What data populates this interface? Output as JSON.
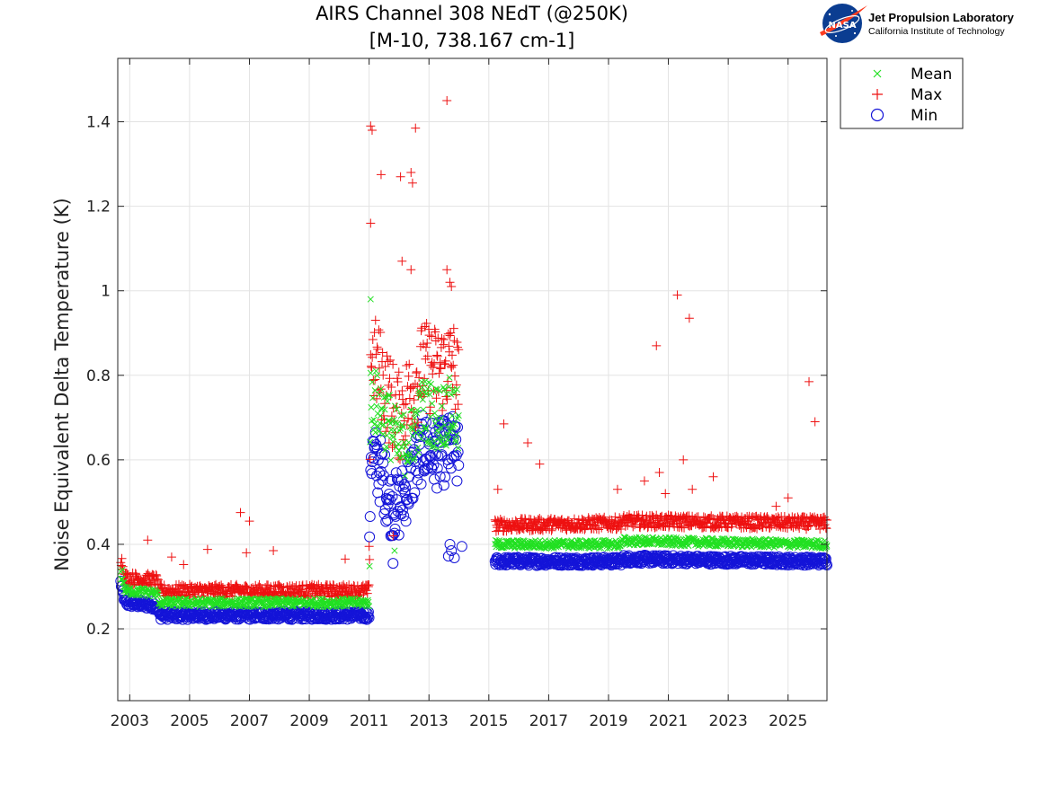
{
  "chart_data": {
    "type": "scatter",
    "title": "AIRS Channel 308 NEdT (@250K)",
    "subtitle": "[M-10, 738.167 cm-1]",
    "xlabel": "",
    "ylabel": "Noise Equivalent Delta Temperature (K)",
    "xlim": [
      2002.6,
      2026.3
    ],
    "ylim": [
      0.03,
      1.55
    ],
    "x_ticks": [
      "2003",
      "2005",
      "2007",
      "2009",
      "2011",
      "2013",
      "2015",
      "2017",
      "2019",
      "2021",
      "2023",
      "2025"
    ],
    "x_tick_values": [
      2003,
      2005,
      2007,
      2009,
      2011,
      2013,
      2015,
      2017,
      2019,
      2021,
      2023,
      2025
    ],
    "y_ticks": [
      "0.2",
      "0.4",
      "0.6",
      "0.8",
      "1",
      "1.2",
      "1.4"
    ],
    "y_tick_values": [
      0.2,
      0.4,
      0.6,
      0.8,
      1.0,
      1.2,
      1.4
    ],
    "grid": true,
    "legend_position": "outside-top-right",
    "series": [
      {
        "name": "Mean",
        "marker": "x",
        "color": "#22e022",
        "trend": [
          [
            2002.7,
            0.33
          ],
          [
            2002.85,
            0.29
          ],
          [
            2003.9,
            0.285
          ],
          [
            2004.0,
            0.262
          ],
          [
            2011.0,
            0.262
          ],
          [
            2011.05,
            0.75
          ],
          [
            2011.4,
            0.72
          ],
          [
            2011.7,
            0.68
          ],
          [
            2012.0,
            0.63
          ],
          [
            2012.4,
            0.65
          ],
          [
            2012.8,
            0.72
          ],
          [
            2013.3,
            0.7
          ],
          [
            2013.8,
            0.72
          ],
          [
            2015.2,
            0.4
          ],
          [
            2019.4,
            0.4
          ],
          [
            2019.5,
            0.408
          ],
          [
            2026.3,
            0.4
          ]
        ],
        "outliers": [
          [
            2011.05,
            0.98
          ],
          [
            2011.85,
            0.385
          ],
          [
            2002.75,
            0.34
          ]
        ]
      },
      {
        "name": "Max",
        "marker": "+",
        "color": "#ee1111",
        "trend": [
          [
            2002.7,
            0.37
          ],
          [
            2002.85,
            0.32
          ],
          [
            2003.9,
            0.315
          ],
          [
            2004.0,
            0.29
          ],
          [
            2011.0,
            0.29
          ],
          [
            2011.05,
            0.85
          ],
          [
            2011.4,
            0.8
          ],
          [
            2011.7,
            0.74
          ],
          [
            2012.0,
            0.7
          ],
          [
            2012.4,
            0.76
          ],
          [
            2012.8,
            0.82
          ],
          [
            2013.3,
            0.81
          ],
          [
            2013.8,
            0.83
          ],
          [
            2015.2,
            0.445
          ],
          [
            2019.4,
            0.45
          ],
          [
            2019.5,
            0.455
          ],
          [
            2026.3,
            0.45
          ]
        ],
        "outliers": [
          [
            2003.6,
            0.41
          ],
          [
            2004.4,
            0.37
          ],
          [
            2004.8,
            0.352
          ],
          [
            2005.6,
            0.388
          ],
          [
            2006.7,
            0.475
          ],
          [
            2006.9,
            0.38
          ],
          [
            2007.0,
            0.455
          ],
          [
            2007.8,
            0.385
          ],
          [
            2010.2,
            0.365
          ],
          [
            2011.0,
            0.395
          ],
          [
            2011.05,
            1.39
          ],
          [
            2011.1,
            1.38
          ],
          [
            2011.05,
            1.16
          ],
          [
            2011.4,
            1.275
          ],
          [
            2011.8,
            0.42
          ],
          [
            2012.05,
            1.27
          ],
          [
            2012.1,
            1.07
          ],
          [
            2012.4,
            1.28
          ],
          [
            2012.45,
            1.255
          ],
          [
            2012.55,
            1.385
          ],
          [
            2012.4,
            1.05
          ],
          [
            2013.6,
            1.45
          ],
          [
            2013.6,
            1.05
          ],
          [
            2013.7,
            1.02
          ],
          [
            2013.75,
            1.01
          ],
          [
            2015.3,
            0.53
          ],
          [
            2015.5,
            0.685
          ],
          [
            2016.3,
            0.64
          ],
          [
            2016.7,
            0.59
          ],
          [
            2019.3,
            0.53
          ],
          [
            2020.2,
            0.55
          ],
          [
            2020.6,
            0.87
          ],
          [
            2020.7,
            0.57
          ],
          [
            2020.9,
            0.52
          ],
          [
            2021.3,
            0.99
          ],
          [
            2021.5,
            0.6
          ],
          [
            2021.7,
            0.935
          ],
          [
            2021.8,
            0.53
          ],
          [
            2022.5,
            0.56
          ],
          [
            2024.6,
            0.49
          ],
          [
            2025.0,
            0.51
          ],
          [
            2025.7,
            0.785
          ],
          [
            2025.9,
            0.69
          ]
        ]
      },
      {
        "name": "Min",
        "marker": "o",
        "color": "#1414d8",
        "trend": [
          [
            2002.7,
            0.31
          ],
          [
            2002.85,
            0.262
          ],
          [
            2003.9,
            0.255
          ],
          [
            2004.0,
            0.232
          ],
          [
            2011.0,
            0.232
          ],
          [
            2011.05,
            0.62
          ],
          [
            2011.4,
            0.57
          ],
          [
            2011.7,
            0.5
          ],
          [
            2012.0,
            0.49
          ],
          [
            2012.4,
            0.56
          ],
          [
            2012.8,
            0.63
          ],
          [
            2013.3,
            0.61
          ],
          [
            2013.8,
            0.63
          ],
          [
            2015.2,
            0.36
          ],
          [
            2019.4,
            0.36
          ],
          [
            2019.5,
            0.365
          ],
          [
            2026.3,
            0.36
          ]
        ],
        "outliers": [
          [
            2011.8,
            0.355
          ],
          [
            2013.7,
            0.4
          ],
          [
            2013.75,
            0.385
          ],
          [
            2013.65,
            0.372
          ],
          [
            2013.85,
            0.368
          ],
          [
            2014.1,
            0.395
          ]
        ]
      }
    ]
  },
  "logo": {
    "badge_text": "NASA",
    "lab_name": "Jet Propulsion Laboratory",
    "institute": "California Institute of Technology"
  }
}
